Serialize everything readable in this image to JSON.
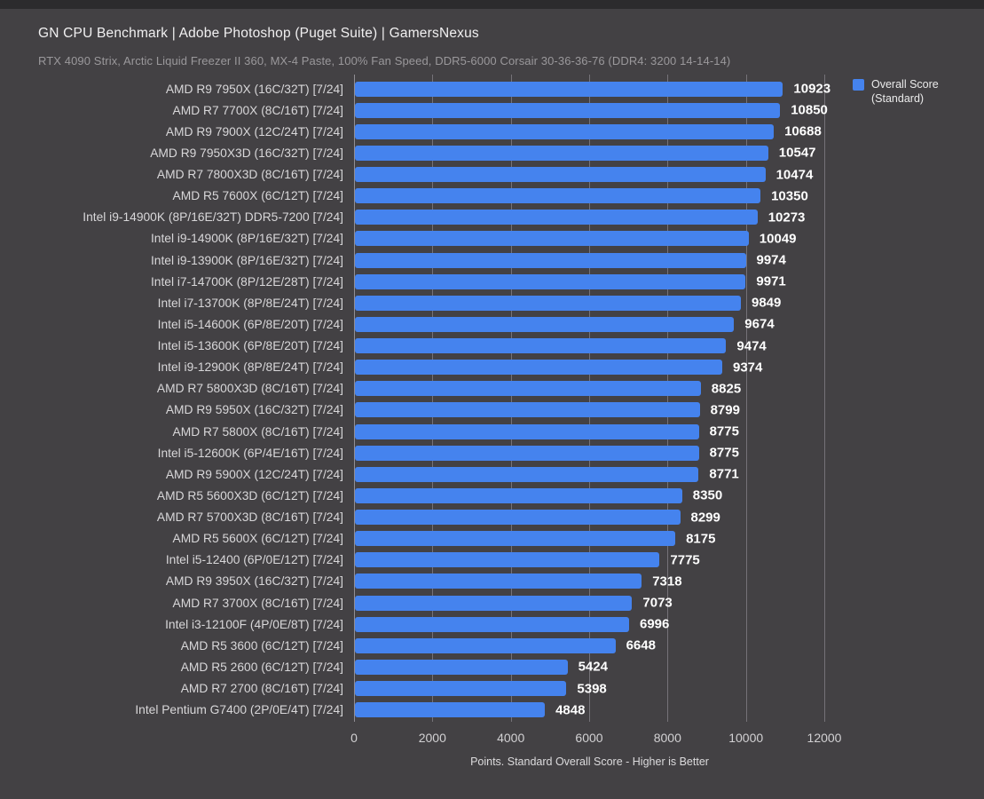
{
  "header": {
    "title": "GN CPU Benchmark | Adobe Photoshop (Puget Suite) | GamersNexus",
    "subtitle": "RTX 4090 Strix, Arctic Liquid Freezer II 360, MX-4 Paste, 100% Fan Speed, DDR5-6000 Corsair 30-36-36-76 (DDR4: 3200 14-14-14)"
  },
  "legend": {
    "label_line1": "Overall Score",
    "label_line2": "(Standard)"
  },
  "colors": {
    "background": "#434144",
    "bar_blue": "#4583ee",
    "title_text": "#f1f0f1",
    "subtitle_text": "#9a989b",
    "value_text": "#ffffff",
    "gridline": "#757278"
  },
  "chart_data": {
    "type": "bar",
    "orientation": "horizontal",
    "title": "GN CPU Benchmark | Adobe Photoshop (Puget Suite) | GamersNexus",
    "subtitle": "RTX 4090 Strix, Arctic Liquid Freezer II 360, MX-4 Paste, 100% Fan Speed, DDR5-6000 Corsair 30-36-36-76 (DDR4: 3200 14-14-14)",
    "xlabel": "Points. Standard Overall Score - Higher is Better",
    "legend": [
      "Overall Score (Standard)"
    ],
    "legend_position": "top-right",
    "grid": true,
    "bar_color": "#4583ee",
    "xlim": [
      0,
      12000
    ],
    "xticks": [
      0,
      2000,
      4000,
      6000,
      8000,
      10000,
      12000
    ],
    "categories": [
      "AMD R9 7950X (16C/32T) [7/24]",
      "AMD R7 7700X (8C/16T) [7/24]",
      "AMD R9 7900X (12C/24T) [7/24]",
      "AMD R9 7950X3D (16C/32T) [7/24]",
      "AMD R7 7800X3D (8C/16T) [7/24]",
      "AMD R5 7600X (6C/12T) [7/24]",
      "Intel i9-14900K (8P/16E/32T) DDR5-7200 [7/24]",
      "Intel i9-14900K (8P/16E/32T) [7/24]",
      "Intel i9-13900K (8P/16E/32T) [7/24]",
      "Intel i7-14700K (8P/12E/28T) [7/24]",
      "Intel i7-13700K (8P/8E/24T) [7/24]",
      "Intel i5-14600K (6P/8E/20T) [7/24]",
      "Intel i5-13600K (6P/8E/20T) [7/24]",
      "Intel i9-12900K (8P/8E/24T) [7/24]",
      "AMD R7 5800X3D (8C/16T) [7/24]",
      "AMD R9 5950X (16C/32T) [7/24]",
      "AMD R7 5800X (8C/16T) [7/24]",
      "Intel i5-12600K (6P/4E/16T) [7/24]",
      "AMD R9 5900X (12C/24T) [7/24]",
      "AMD R5 5600X3D (6C/12T) [7/24]",
      "AMD R7 5700X3D (8C/16T) [7/24]",
      "AMD R5 5600X (6C/12T) [7/24]",
      "Intel i5-12400 (6P/0E/12T) [7/24]",
      "AMD R9 3950X (16C/32T) [7/24]",
      "AMD R7 3700X (8C/16T) [7/24]",
      "Intel i3-12100F (4P/0E/8T) [7/24]",
      "AMD R5 3600 (6C/12T) [7/24]",
      "AMD R5 2600 (6C/12T) [7/24]",
      "AMD R7 2700 (8C/16T) [7/24]",
      "Intel Pentium G7400 (2P/0E/4T) [7/24]"
    ],
    "values": [
      10923,
      10850,
      10688,
      10547,
      10474,
      10350,
      10273,
      10049,
      9974,
      9971,
      9849,
      9674,
      9474,
      9374,
      8825,
      8799,
      8775,
      8775,
      8771,
      8350,
      8299,
      8175,
      7775,
      7318,
      7073,
      6996,
      6648,
      5424,
      5398,
      4848
    ]
  }
}
